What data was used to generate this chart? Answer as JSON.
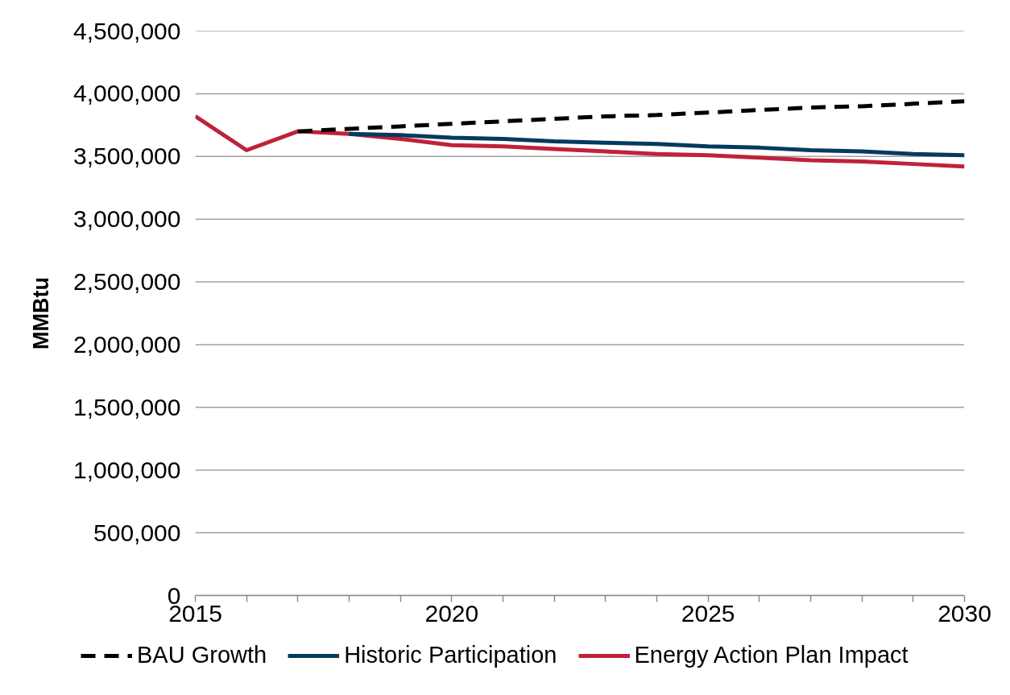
{
  "chart_data": {
    "type": "line",
    "ylabel": "MMBtu",
    "x": [
      2015,
      2016,
      2017,
      2018,
      2019,
      2020,
      2021,
      2022,
      2023,
      2024,
      2025,
      2026,
      2027,
      2028,
      2029,
      2030
    ],
    "series": [
      {
        "name": "BAU Growth",
        "color": "#000000",
        "line_style": "dashed",
        "values": [
          null,
          null,
          3700000,
          3720000,
          3740000,
          3760000,
          3780000,
          3800000,
          3820000,
          3830000,
          3850000,
          3870000,
          3890000,
          3900000,
          3920000,
          3940000
        ]
      },
      {
        "name": "Historic Participation",
        "color": "#043a5e",
        "values": [
          null,
          null,
          null,
          3680000,
          3670000,
          3650000,
          3640000,
          3620000,
          3610000,
          3600000,
          3580000,
          3570000,
          3550000,
          3540000,
          3520000,
          3510000
        ]
      },
      {
        "name": "Energy Action Plan Impact",
        "color": "#c0213b",
        "values": [
          3820000,
          3550000,
          3700000,
          3680000,
          3640000,
          3590000,
          3580000,
          3560000,
          3540000,
          3520000,
          3510000,
          3490000,
          3470000,
          3460000,
          3440000,
          3420000
        ]
      }
    ],
    "xlim": [
      2015,
      2030
    ],
    "xticks": [
      2015,
      {
        "value": 2016,
        "label": null
      },
      {
        "value": 2017,
        "label": null
      },
      {
        "value": 2018,
        "label": null
      },
      {
        "value": 2019,
        "label": null
      },
      2020,
      {
        "value": 2021,
        "label": null
      },
      {
        "value": 2022,
        "label": null
      },
      {
        "value": 2023,
        "label": null
      },
      {
        "value": 2024,
        "label": null
      },
      2025,
      {
        "value": 2026,
        "label": null
      },
      {
        "value": 2027,
        "label": null
      },
      {
        "value": 2028,
        "label": null
      },
      {
        "value": 2029,
        "label": null
      },
      2030
    ],
    "ylim": [
      0,
      4500000
    ],
    "yticks": [
      0,
      {
        "value": 500000,
        "label": "500,000"
      },
      {
        "value": 1000000,
        "label": "1,000,000"
      },
      {
        "value": 1500000,
        "label": "1,500,000"
      },
      {
        "value": 2000000,
        "label": "2,000,000"
      },
      {
        "value": 2500000,
        "label": "2,500,000"
      },
      {
        "value": 3000000,
        "label": "3,000,000"
      },
      {
        "value": 3500000,
        "label": "3,500,000"
      },
      {
        "value": 4000000,
        "label": "4,000,000"
      },
      {
        "value": 4500000,
        "label": "4,500,000"
      }
    ],
    "grid": "y",
    "legend": "bottom",
    "line_style": "solid"
  }
}
